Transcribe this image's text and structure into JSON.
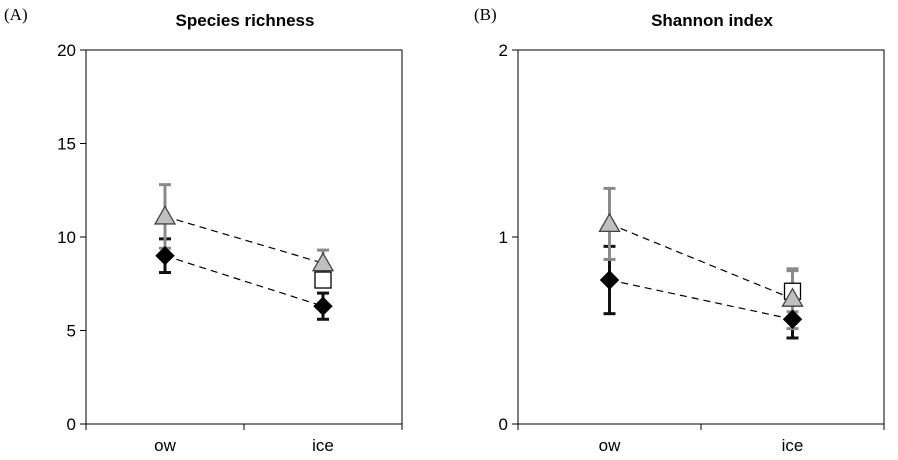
{
  "panels": [
    {
      "label": "(A)",
      "title": "Species richness"
    },
    {
      "label": "(B)",
      "title": "Shannon index"
    }
  ],
  "chart_data": [
    {
      "type": "scatter",
      "title": "Species richness",
      "categories": [
        "ow",
        "ice"
      ],
      "ylim": [
        0,
        20
      ],
      "yticks": [
        0,
        5,
        10,
        15,
        20
      ],
      "series": [
        {
          "marker": "diamond",
          "color": "#000000",
          "errorbar_color": "#111111",
          "values": [
            9.0,
            6.3
          ],
          "errors": [
            0.9,
            0.7
          ],
          "connected": true
        },
        {
          "marker": "triangle",
          "color": "#bfbfbf",
          "errorbar_color": "#8a8a8a",
          "values": [
            11.1,
            8.6
          ],
          "errors": [
            1.7,
            0.7
          ],
          "connected": true
        },
        {
          "marker": "square",
          "color": "#ffffff",
          "errorbar_color": "#8a8a8a",
          "values": [
            null,
            7.7
          ],
          "errors": [
            null,
            0.0
          ],
          "connected": false
        }
      ]
    },
    {
      "type": "scatter",
      "title": "Shannon index",
      "categories": [
        "ow",
        "ice"
      ],
      "ylim": [
        0,
        2
      ],
      "yticks": [
        0,
        1,
        2
      ],
      "series": [
        {
          "marker": "diamond",
          "color": "#000000",
          "errorbar_color": "#111111",
          "values": [
            0.77,
            0.56
          ],
          "errors": [
            0.18,
            0.1
          ],
          "connected": true
        },
        {
          "marker": "triangle",
          "color": "#bfbfbf",
          "errorbar_color": "#8a8a8a",
          "values": [
            1.07,
            0.67
          ],
          "errors": [
            0.19,
            0.16
          ],
          "connected": true
        },
        {
          "marker": "square",
          "color": "#ffffff",
          "errorbar_color": "#8a8a8a",
          "values": [
            null,
            0.71
          ],
          "errors": [
            null,
            0.11
          ],
          "connected": false
        }
      ]
    }
  ]
}
